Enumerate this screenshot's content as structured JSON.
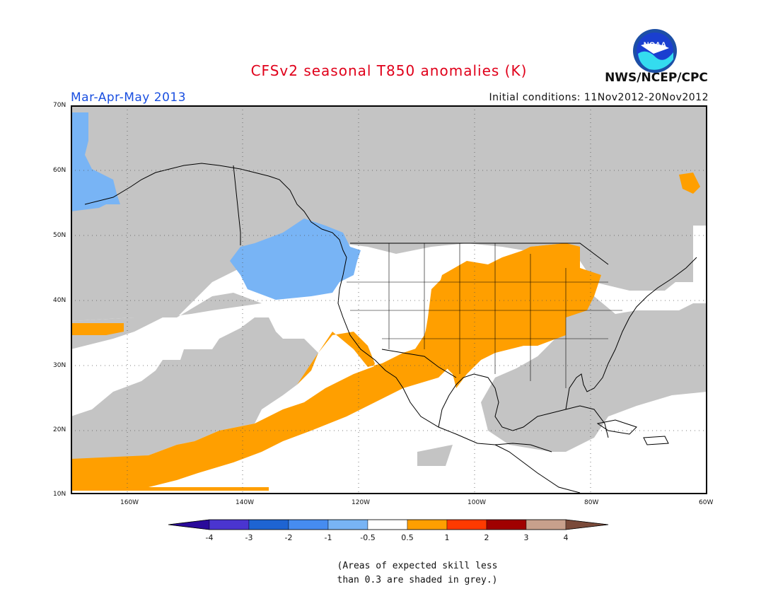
{
  "title": "CFSv2 seasonal T850 anomalies (K)",
  "season": "Mar-Apr-May 2013",
  "initial_conditions": "Initial conditions: 11Nov2012-20Nov2012",
  "agency": "NWS/NCEP/CPC",
  "logo_text": "NOAA",
  "footnote": {
    "line1": "(Areas of expected skill less",
    "line2": "than 0.3 are shaded in grey.)"
  },
  "map": {
    "lon_ticks": [
      "160W",
      "140W",
      "120W",
      "100W",
      "80W",
      "60W"
    ],
    "lat_ticks": [
      "70N",
      "60N",
      "50N",
      "40N",
      "30N",
      "20N",
      "10N"
    ],
    "extent": {
      "lon": [
        -170,
        -60
      ],
      "lat": [
        10,
        70
      ]
    }
  },
  "colorbar": {
    "labels": [
      "-4",
      "-3",
      "-2",
      "-1",
      "-0.5",
      "0.5",
      "1",
      "2",
      "3",
      "4"
    ],
    "colors": [
      "#2a0a9a",
      "#4a35d0",
      "#1e64d2",
      "#468cf0",
      "#78b4f5",
      "#ffffff",
      "#ff9f00",
      "#ff3a00",
      "#a00000",
      "#c8a08c",
      "#7a4a3a"
    ]
  },
  "legend_colors": {
    "low_skill": "#c4c4c4",
    "warm_1": "#ff9f00",
    "cool_1": "#78b4f5",
    "neutral": "#ffffff"
  }
}
